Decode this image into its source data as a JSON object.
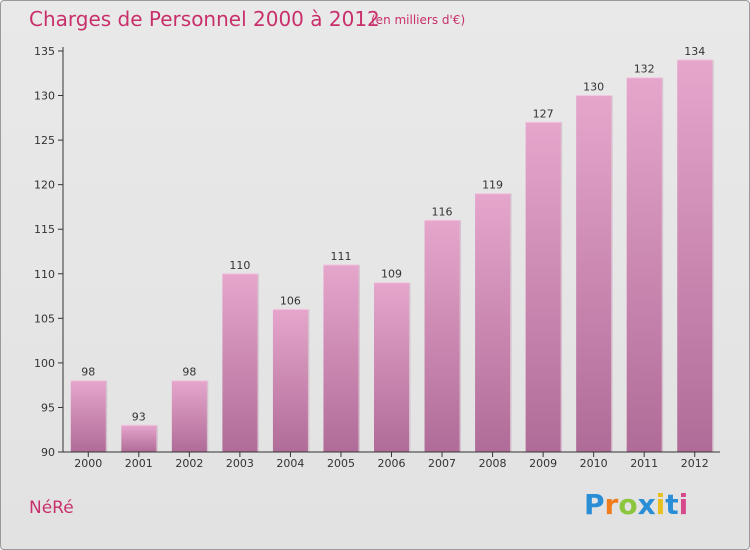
{
  "header": {
    "title": "Charges de Personnel 2000 à 2012",
    "subtitle": "(en milliers d'€)"
  },
  "footer": {
    "place": "NéRé",
    "logo": {
      "letters": [
        "P",
        "r",
        "o",
        "x",
        "i",
        "t",
        "i"
      ],
      "colors": [
        "#2a8ed6",
        "#f07c1e",
        "#8cc63f",
        "#2a8ed6",
        "#e8c01e",
        "#2a8ed6",
        "#d64a8c"
      ]
    }
  },
  "colors": {
    "title": "#c8306c",
    "bar_top": "#e6a6cc",
    "bar_bottom": "#b06c98",
    "axis": "#333333"
  },
  "chart_data": {
    "type": "bar",
    "categories": [
      "2000",
      "2001",
      "2002",
      "2003",
      "2004",
      "2005",
      "2006",
      "2007",
      "2008",
      "2009",
      "2010",
      "2011",
      "2012"
    ],
    "values": [
      98,
      93,
      98,
      110,
      106,
      111,
      109,
      116,
      119,
      127,
      130,
      132,
      134
    ],
    "title": "Charges de Personnel 2000 à 2012",
    "ylim": [
      90,
      135
    ],
    "yticks": [
      90,
      95,
      100,
      105,
      110,
      115,
      120,
      125,
      130,
      135
    ],
    "grid": false,
    "data_labels": true
  }
}
